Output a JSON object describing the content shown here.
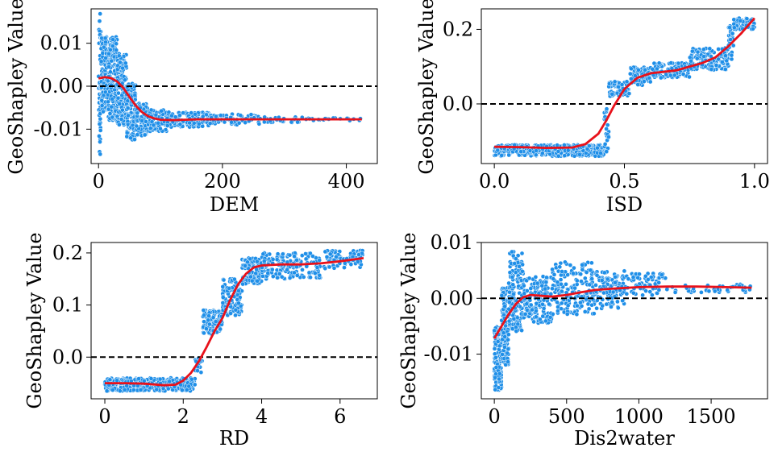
{
  "chart_data": [
    {
      "type": "scatter",
      "xlabel": "DEM",
      "ylabel": "GeoShapley Value",
      "xlim": [
        -12,
        450
      ],
      "ylim": [
        -0.018,
        0.018
      ],
      "xticks": [
        0,
        200,
        400
      ],
      "xtick_labels": [
        "0",
        "200",
        "400"
      ],
      "yticks": [
        -0.01,
        0.0,
        0.01
      ],
      "ytick_labels": [
        "-0.01",
        "0.00",
        "0.01"
      ],
      "zero_line": 0,
      "point_color": "#1f8fe8",
      "fit_color": "#e8111a",
      "fit_line": {
        "x": [
          0,
          10,
          20,
          30,
          40,
          50,
          60,
          70,
          80,
          90,
          100,
          120,
          140,
          160,
          200,
          250,
          300,
          350,
          400,
          425
        ],
        "y": [
          0.0018,
          0.0021,
          0.0019,
          0.0011,
          -0.0004,
          -0.0025,
          -0.0045,
          -0.006,
          -0.007,
          -0.0075,
          -0.0078,
          -0.0079,
          -0.0078,
          -0.0077,
          -0.0077,
          -0.0077,
          -0.0077,
          -0.0077,
          -0.0077,
          -0.0077
        ]
      },
      "point_bands": [
        {
          "x": [
            0,
            4
          ],
          "y": [
            -0.016,
            0.017
          ],
          "n": 40
        },
        {
          "x": [
            4,
            15
          ],
          "y": [
            -0.006,
            0.0115
          ],
          "n": 140
        },
        {
          "x": [
            15,
            30
          ],
          "y": [
            -0.008,
            0.0115
          ],
          "n": 180
        },
        {
          "x": [
            30,
            45
          ],
          "y": [
            -0.009,
            0.008
          ],
          "n": 150
        },
        {
          "x": [
            45,
            60
          ],
          "y": [
            -0.0125,
            0.001
          ],
          "n": 110
        },
        {
          "x": [
            60,
            80
          ],
          "y": [
            -0.0115,
            -0.004
          ],
          "n": 90
        },
        {
          "x": [
            80,
            110
          ],
          "y": [
            -0.0105,
            -0.0055
          ],
          "n": 90
        },
        {
          "x": [
            110,
            180
          ],
          "y": [
            -0.0095,
            -0.006
          ],
          "n": 120
        },
        {
          "x": [
            180,
            260
          ],
          "y": [
            -0.009,
            -0.0065
          ],
          "n": 70
        },
        {
          "x": [
            260,
            330
          ],
          "y": [
            -0.0085,
            -0.007
          ],
          "n": 30
        },
        {
          "x": [
            330,
            425
          ],
          "y": [
            -0.008,
            -0.0074
          ],
          "n": 20
        }
      ]
    },
    {
      "type": "scatter",
      "xlabel": "ISD",
      "ylabel": "GeoShapley Value",
      "xlim": [
        -0.05,
        1.05
      ],
      "ylim": [
        -0.16,
        0.255
      ],
      "xticks": [
        0.0,
        0.5,
        1.0
      ],
      "xtick_labels": [
        "0.0",
        "0.5",
        "1.0"
      ],
      "yticks": [
        0.0,
        0.2
      ],
      "ytick_labels": [
        "0.0",
        "0.2"
      ],
      "zero_line": 0,
      "point_color": "#1f8fe8",
      "fit_color": "#e8111a",
      "fit_line": {
        "x": [
          0.0,
          0.1,
          0.2,
          0.3,
          0.35,
          0.4,
          0.43,
          0.46,
          0.5,
          0.55,
          0.6,
          0.7,
          0.8,
          0.85,
          0.9,
          0.95,
          1.0
        ],
        "y": [
          -0.115,
          -0.116,
          -0.118,
          -0.117,
          -0.108,
          -0.08,
          -0.045,
          -0.005,
          0.04,
          0.07,
          0.082,
          0.09,
          0.11,
          0.125,
          0.155,
          0.19,
          0.23
        ]
      },
      "point_bands": [
        {
          "x": [
            0.0,
            0.42
          ],
          "y": [
            -0.14,
            -0.11
          ],
          "n": 420
        },
        {
          "x": [
            0.42,
            0.44
          ],
          "y": [
            -0.13,
            -0.01
          ],
          "n": 30
        },
        {
          "x": [
            0.44,
            0.52
          ],
          "y": [
            0.02,
            0.06
          ],
          "n": 60
        },
        {
          "x": [
            0.52,
            0.6
          ],
          "y": [
            0.05,
            0.1
          ],
          "n": 80
        },
        {
          "x": [
            0.6,
            0.75
          ],
          "y": [
            0.07,
            0.11
          ],
          "n": 120
        },
        {
          "x": [
            0.75,
            0.9
          ],
          "y": [
            0.09,
            0.15
          ],
          "n": 130
        },
        {
          "x": [
            0.9,
            0.92
          ],
          "y": [
            0.12,
            0.22
          ],
          "n": 25
        },
        {
          "x": [
            0.92,
            1.0
          ],
          "y": [
            0.2,
            0.23
          ],
          "n": 60
        }
      ]
    },
    {
      "type": "scatter",
      "xlabel": "RD",
      "ylabel": "GeoShapley Value",
      "xlim": [
        -0.35,
        6.95
      ],
      "ylim": [
        -0.08,
        0.22
      ],
      "xticks": [
        0,
        2,
        4,
        6
      ],
      "xtick_labels": [
        "0",
        "2",
        "4",
        "6"
      ],
      "yticks": [
        0.0,
        0.1,
        0.2
      ],
      "ytick_labels": [
        "0.0",
        "0.1",
        "0.2"
      ],
      "zero_line": 0,
      "point_color": "#1f8fe8",
      "fit_color": "#e8111a",
      "fit_line": {
        "x": [
          0.0,
          0.5,
          1.0,
          1.5,
          1.8,
          2.0,
          2.2,
          2.4,
          2.6,
          2.8,
          3.0,
          3.2,
          3.4,
          3.6,
          3.8,
          4.0,
          4.5,
          5.0,
          5.5,
          6.0,
          6.6
        ],
        "y": [
          -0.05,
          -0.05,
          -0.051,
          -0.054,
          -0.053,
          -0.045,
          -0.03,
          -0.008,
          0.02,
          0.05,
          0.075,
          0.11,
          0.14,
          0.16,
          0.172,
          0.176,
          0.178,
          0.178,
          0.18,
          0.184,
          0.19
        ]
      },
      "point_bands": [
        {
          "x": [
            0.0,
            2.3
          ],
          "y": [
            -0.065,
            -0.04
          ],
          "n": 380
        },
        {
          "x": [
            2.3,
            2.5
          ],
          "y": [
            -0.03,
            0.0
          ],
          "n": 20
        },
        {
          "x": [
            2.5,
            3.0
          ],
          "y": [
            0.045,
            0.09
          ],
          "n": 100
        },
        {
          "x": [
            3.0,
            3.5
          ],
          "y": [
            0.08,
            0.15
          ],
          "n": 110
        },
        {
          "x": [
            3.5,
            4.0
          ],
          "y": [
            0.14,
            0.19
          ],
          "n": 110
        },
        {
          "x": [
            4.0,
            5.5
          ],
          "y": [
            0.15,
            0.2
          ],
          "n": 160
        },
        {
          "x": [
            5.5,
            6.6
          ],
          "y": [
            0.17,
            0.205
          ],
          "n": 80
        }
      ]
    },
    {
      "type": "scatter",
      "xlabel": "Dis2water",
      "ylabel": "GeoShapley Value",
      "xlim": [
        -90,
        1890
      ],
      "ylim": [
        -0.018,
        0.01
      ],
      "xticks": [
        0,
        500,
        1000,
        1500
      ],
      "xtick_labels": [
        "0",
        "500",
        "1000",
        "1500"
      ],
      "yticks": [
        -0.01,
        0.0,
        0.01
      ],
      "ytick_labels": [
        "-0.01",
        "0.00",
        "0.01"
      ],
      "zero_line": 0,
      "point_color": "#1f8fe8",
      "fit_color": "#e8111a",
      "fit_line": {
        "x": [
          0,
          50,
          100,
          150,
          200,
          250,
          300,
          400,
          500,
          600,
          700,
          800,
          1000,
          1200,
          1400,
          1600,
          1780
        ],
        "y": [
          -0.0072,
          -0.005,
          -0.0028,
          -0.001,
          0.0002,
          0.0006,
          0.0005,
          0.0003,
          0.0006,
          0.0011,
          0.0015,
          0.0017,
          0.002,
          0.0021,
          0.0021,
          0.002,
          0.0019
        ]
      },
      "point_bands": [
        {
          "x": [
            0,
            50
          ],
          "y": [
            -0.0165,
            -0.005
          ],
          "n": 120
        },
        {
          "x": [
            50,
            100
          ],
          "y": [
            -0.012,
            0.002
          ],
          "n": 130
        },
        {
          "x": [
            100,
            200
          ],
          "y": [
            -0.006,
            0.0085
          ],
          "n": 160
        },
        {
          "x": [
            200,
            400
          ],
          "y": [
            -0.0045,
            0.004
          ],
          "n": 160
        },
        {
          "x": [
            400,
            700
          ],
          "y": [
            -0.003,
            0.0065
          ],
          "n": 170
        },
        {
          "x": [
            700,
            900
          ],
          "y": [
            -0.002,
            0.005
          ],
          "n": 110
        },
        {
          "x": [
            900,
            1200
          ],
          "y": [
            0.0005,
            0.0045
          ],
          "n": 70
        },
        {
          "x": [
            1200,
            1780
          ],
          "y": [
            0.001,
            0.0025
          ],
          "n": 40
        }
      ]
    }
  ]
}
